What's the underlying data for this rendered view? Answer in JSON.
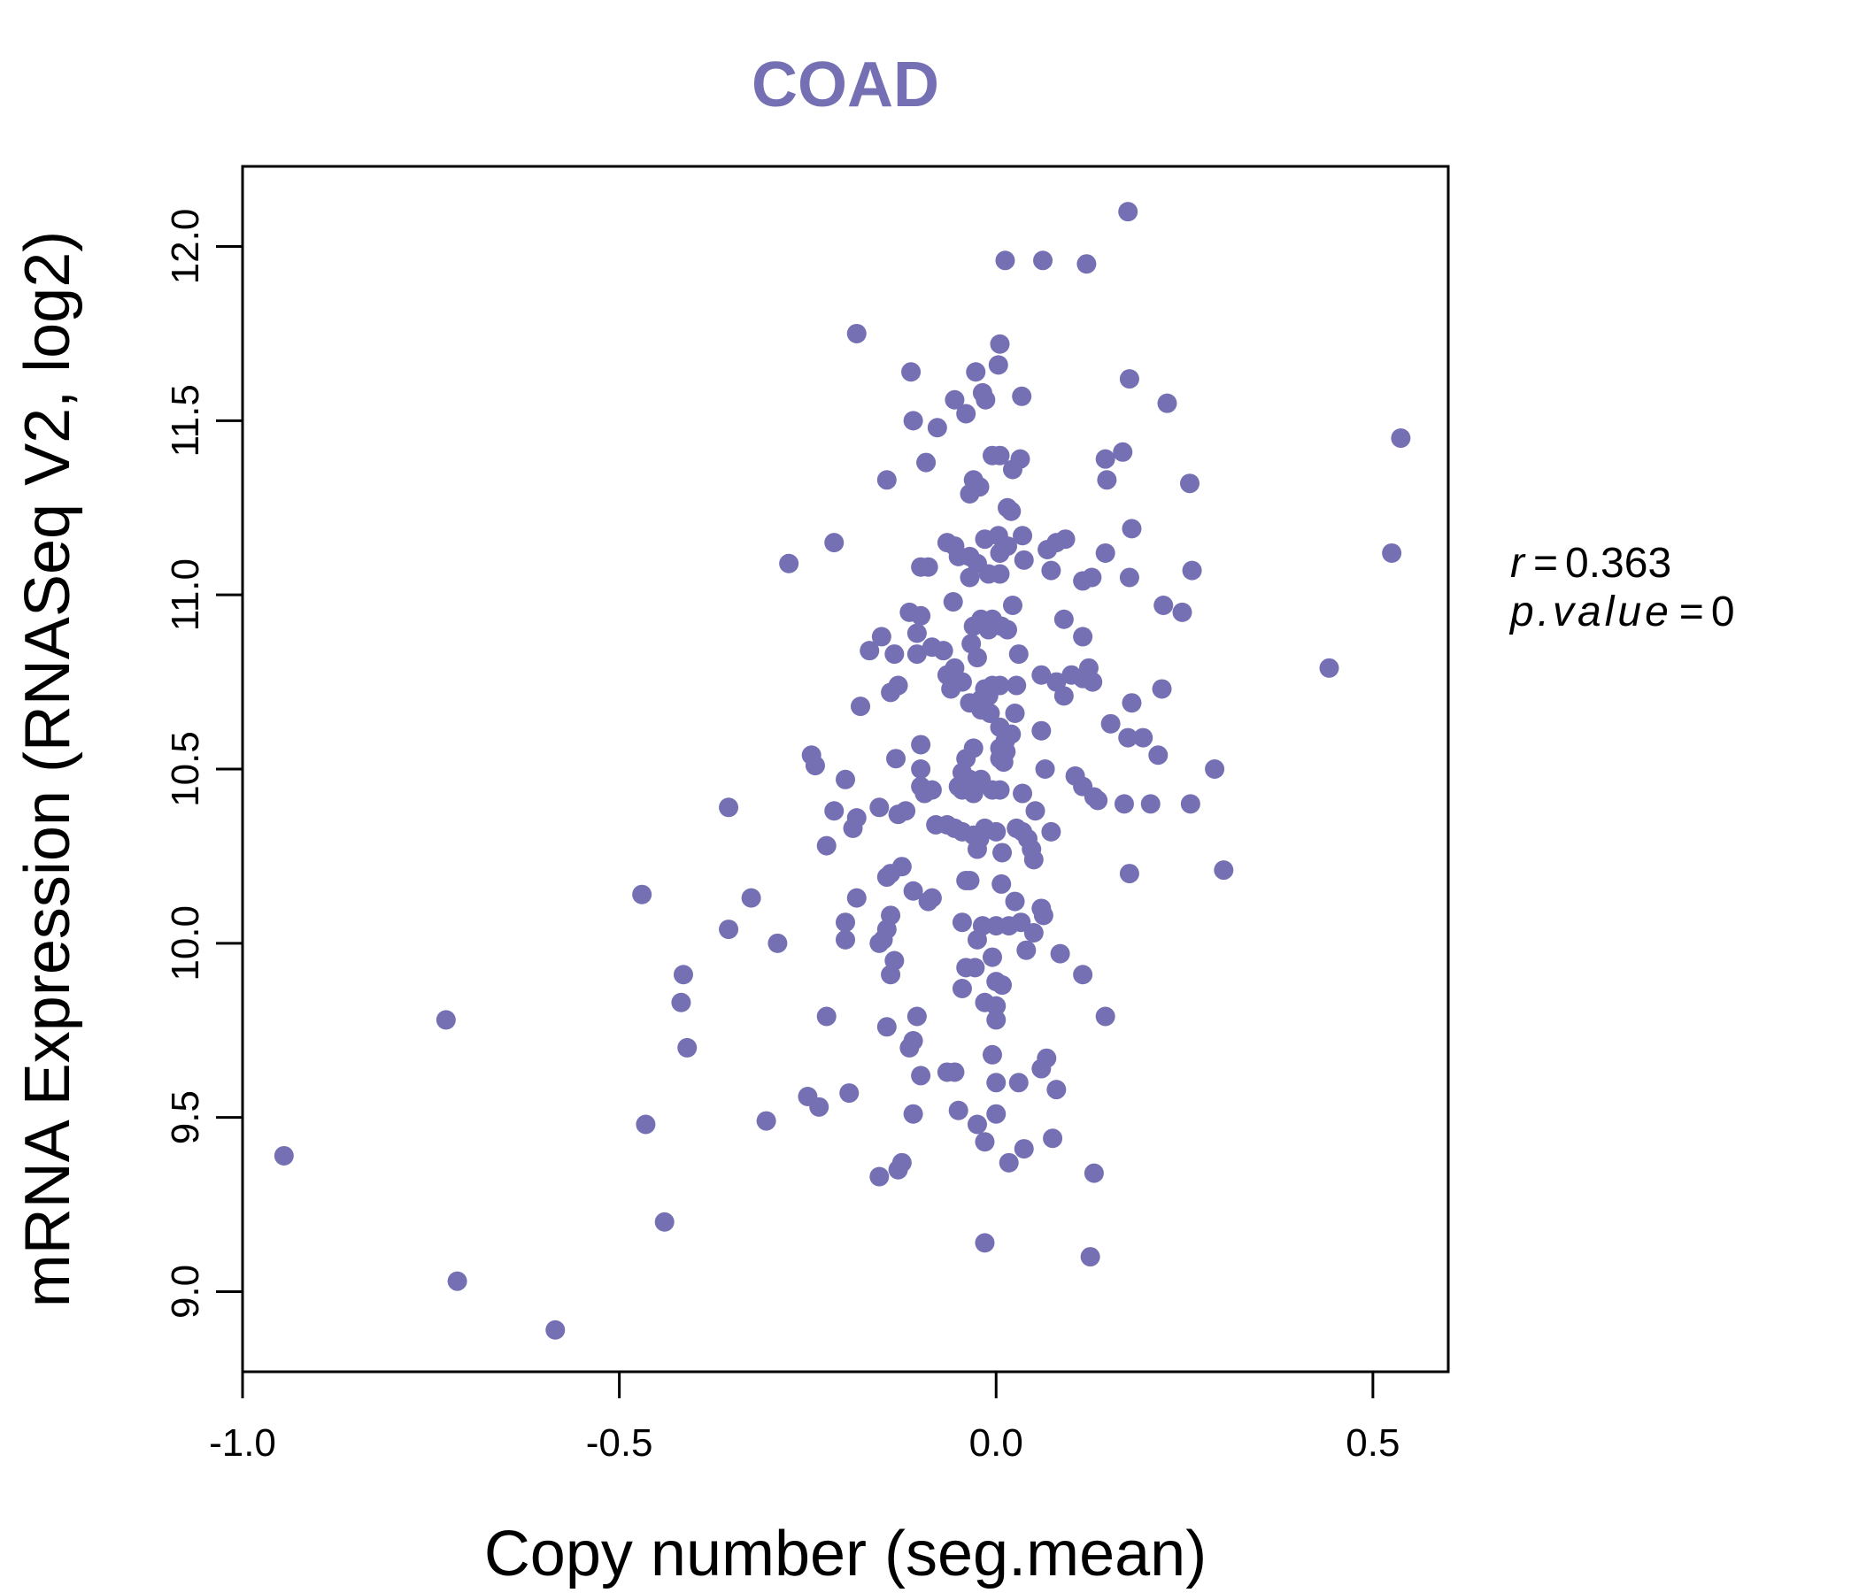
{
  "chart_data": {
    "type": "scatter",
    "title": "COAD",
    "xlabel": "Copy number (seg.mean)",
    "ylabel": "mRNA Expression (RNASeq V2, log2)",
    "xlim": [
      -1.0,
      0.6
    ],
    "ylim": [
      8.77,
      12.23
    ],
    "xticks": [
      -1.0,
      -0.5,
      0.0,
      0.5
    ],
    "xtick_labels": [
      "-1.0",
      "-0.5",
      "0.0",
      "0.5"
    ],
    "yticks": [
      9.0,
      9.5,
      10.0,
      10.5,
      11.0,
      11.5,
      12.0
    ],
    "ytick_labels": [
      "9.0",
      "9.5",
      "10.0",
      "10.5",
      "11.0",
      "11.5",
      "12.0"
    ],
    "grid": false,
    "legend": null,
    "point_color": "#7570b3",
    "stats": {
      "r_label": "r",
      "r_value": "0.363",
      "p_label": "p.value",
      "p_value": "0"
    },
    "points": [
      [
        0.175,
        12.1
      ],
      [
        0.012,
        11.96
      ],
      [
        0.062,
        11.96
      ],
      [
        0.12,
        11.95
      ],
      [
        -0.185,
        11.75
      ],
      [
        0.005,
        11.72
      ],
      [
        0.003,
        11.66
      ],
      [
        -0.027,
        11.64
      ],
      [
        -0.113,
        11.64
      ],
      [
        0.177,
        11.62
      ],
      [
        -0.018,
        11.58
      ],
      [
        -0.014,
        11.56
      ],
      [
        -0.055,
        11.56
      ],
      [
        0.034,
        11.57
      ],
      [
        0.227,
        11.55
      ],
      [
        -0.04,
        11.52
      ],
      [
        -0.11,
        11.5
      ],
      [
        -0.078,
        11.48
      ],
      [
        0.537,
        11.45
      ],
      [
        -0.005,
        11.4
      ],
      [
        0.005,
        11.4
      ],
      [
        0.168,
        11.41
      ],
      [
        0.145,
        11.39
      ],
      [
        0.032,
        11.39
      ],
      [
        -0.093,
        11.38
      ],
      [
        0.022,
        11.36
      ],
      [
        -0.145,
        11.33
      ],
      [
        -0.03,
        11.33
      ],
      [
        0.147,
        11.33
      ],
      [
        0.257,
        11.32
      ],
      [
        -0.022,
        11.31
      ],
      [
        -0.035,
        11.29
      ],
      [
        0.015,
        11.25
      ],
      [
        0.02,
        11.24
      ],
      [
        0.18,
        11.19
      ],
      [
        -0.015,
        11.16
      ],
      [
        0.003,
        11.17
      ],
      [
        0.035,
        11.17
      ],
      [
        0.092,
        11.16
      ],
      [
        0.08,
        11.15
      ],
      [
        -0.065,
        11.15
      ],
      [
        -0.055,
        11.14
      ],
      [
        0.015,
        11.14
      ],
      [
        0.068,
        11.13
      ],
      [
        -0.215,
        11.15
      ],
      [
        0.005,
        11.12
      ],
      [
        0.145,
        11.12
      ],
      [
        0.525,
        11.12
      ],
      [
        -0.035,
        11.11
      ],
      [
        -0.05,
        11.11
      ],
      [
        0.037,
        11.1
      ],
      [
        -0.275,
        11.09
      ],
      [
        -0.025,
        11.09
      ],
      [
        -0.09,
        11.08
      ],
      [
        -0.1,
        11.08
      ],
      [
        0.26,
        11.07
      ],
      [
        0.073,
        11.07
      ],
      [
        0.005,
        11.06
      ],
      [
        -0.01,
        11.06
      ],
      [
        0.127,
        11.05
      ],
      [
        0.115,
        11.04
      ],
      [
        0.177,
        11.05
      ],
      [
        -0.035,
        11.05
      ],
      [
        0.222,
        10.97
      ],
      [
        0.022,
        10.97
      ],
      [
        -0.057,
        10.98
      ],
      [
        0.247,
        10.95
      ],
      [
        -0.115,
        10.95
      ],
      [
        -0.1,
        10.94
      ],
      [
        -0.005,
        10.93
      ],
      [
        -0.02,
        10.93
      ],
      [
        0.09,
        10.93
      ],
      [
        0.007,
        10.91
      ],
      [
        -0.03,
        10.91
      ],
      [
        -0.01,
        10.9
      ],
      [
        0.015,
        10.9
      ],
      [
        -0.105,
        10.89
      ],
      [
        0.115,
        10.88
      ],
      [
        -0.152,
        10.88
      ],
      [
        -0.085,
        10.85
      ],
      [
        -0.033,
        10.86
      ],
      [
        -0.168,
        10.84
      ],
      [
        -0.07,
        10.84
      ],
      [
        -0.105,
        10.83
      ],
      [
        -0.135,
        10.83
      ],
      [
        0.03,
        10.83
      ],
      [
        -0.025,
        10.82
      ],
      [
        0.442,
        10.79
      ],
      [
        0.123,
        10.79
      ],
      [
        -0.055,
        10.79
      ],
      [
        -0.065,
        10.77
      ],
      [
        0.1,
        10.77
      ],
      [
        0.06,
        10.77
      ],
      [
        0.115,
        10.76
      ],
      [
        0.128,
        10.75
      ],
      [
        0.08,
        10.75
      ],
      [
        -0.045,
        10.75
      ],
      [
        -0.005,
        10.74
      ],
      [
        0.005,
        10.74
      ],
      [
        0.027,
        10.74
      ],
      [
        -0.015,
        10.73
      ],
      [
        -0.13,
        10.74
      ],
      [
        -0.06,
        10.73
      ],
      [
        0.22,
        10.73
      ],
      [
        -0.14,
        10.72
      ],
      [
        0.09,
        10.71
      ],
      [
        -0.01,
        10.71
      ],
      [
        0.18,
        10.69
      ],
      [
        -0.02,
        10.7
      ],
      [
        -0.035,
        10.69
      ],
      [
        -0.18,
        10.68
      ],
      [
        0.025,
        10.66
      ],
      [
        -0.02,
        10.67
      ],
      [
        -0.008,
        10.66
      ],
      [
        0.005,
        10.62
      ],
      [
        0.152,
        10.63
      ],
      [
        0.02,
        10.6
      ],
      [
        0.06,
        10.61
      ],
      [
        0.175,
        10.59
      ],
      [
        0.195,
        10.59
      ],
      [
        0.012,
        10.58
      ],
      [
        0.005,
        10.56
      ],
      [
        -0.1,
        10.57
      ],
      [
        -0.03,
        10.56
      ],
      [
        0.013,
        10.55
      ],
      [
        0.005,
        10.53
      ],
      [
        -0.04,
        10.53
      ],
      [
        0.215,
        10.54
      ],
      [
        -0.245,
        10.54
      ],
      [
        -0.133,
        10.53
      ],
      [
        -0.24,
        10.51
      ],
      [
        0.01,
        10.52
      ],
      [
        0.29,
        10.5
      ],
      [
        -0.1,
        10.5
      ],
      [
        0.065,
        10.5
      ],
      [
        -0.045,
        10.49
      ],
      [
        -0.02,
        10.47
      ],
      [
        -0.2,
        10.47
      ],
      [
        -0.035,
        10.47
      ],
      [
        0.105,
        10.48
      ],
      [
        0.115,
        10.45
      ],
      [
        -0.1,
        10.45
      ],
      [
        -0.05,
        10.45
      ],
      [
        -0.03,
        10.45
      ],
      [
        -0.085,
        10.44
      ],
      [
        -0.005,
        10.44
      ],
      [
        0.005,
        10.44
      ],
      [
        0.035,
        10.43
      ],
      [
        0.13,
        10.42
      ],
      [
        -0.03,
        10.43
      ],
      [
        0.135,
        10.41
      ],
      [
        -0.095,
        10.43
      ],
      [
        -0.045,
        10.44
      ],
      [
        0.17,
        10.4
      ],
      [
        0.205,
        10.4
      ],
      [
        0.258,
        10.4
      ],
      [
        -0.355,
        10.39
      ],
      [
        -0.155,
        10.39
      ],
      [
        -0.215,
        10.38
      ],
      [
        -0.12,
        10.38
      ],
      [
        -0.13,
        10.37
      ],
      [
        0.052,
        10.38
      ],
      [
        -0.185,
        10.36
      ],
      [
        -0.065,
        10.34
      ],
      [
        -0.08,
        10.34
      ],
      [
        -0.055,
        10.33
      ],
      [
        -0.045,
        10.32
      ],
      [
        -0.03,
        10.31
      ],
      [
        -0.015,
        10.33
      ],
      [
        0.0,
        10.32
      ],
      [
        0.027,
        10.33
      ],
      [
        0.035,
        10.32
      ],
      [
        0.073,
        10.32
      ],
      [
        -0.19,
        10.33
      ],
      [
        0.042,
        10.3
      ],
      [
        -0.022,
        10.3
      ],
      [
        0.047,
        10.27
      ],
      [
        -0.225,
        10.28
      ],
      [
        -0.025,
        10.27
      ],
      [
        0.008,
        10.26
      ],
      [
        0.05,
        10.24
      ],
      [
        -0.125,
        10.22
      ],
      [
        0.177,
        10.2
      ],
      [
        0.302,
        10.21
      ],
      [
        -0.14,
        10.2
      ],
      [
        -0.145,
        10.19
      ],
      [
        -0.04,
        10.18
      ],
      [
        -0.035,
        10.18
      ],
      [
        0.007,
        10.17
      ],
      [
        -0.11,
        10.15
      ],
      [
        -0.47,
        10.14
      ],
      [
        -0.085,
        10.13
      ],
      [
        -0.09,
        10.12
      ],
      [
        -0.325,
        10.13
      ],
      [
        -0.185,
        10.13
      ],
      [
        0.025,
        10.12
      ],
      [
        0.06,
        10.1
      ],
      [
        0.063,
        10.08
      ],
      [
        -0.14,
        10.08
      ],
      [
        0.033,
        10.06
      ],
      [
        -0.045,
        10.06
      ],
      [
        -0.2,
        10.06
      ],
      [
        -0.018,
        10.05
      ],
      [
        0.017,
        10.05
      ],
      [
        0.0,
        10.05
      ],
      [
        -0.145,
        10.04
      ],
      [
        -0.355,
        10.04
      ],
      [
        0.05,
        10.03
      ],
      [
        -0.15,
        10.01
      ],
      [
        -0.025,
        10.01
      ],
      [
        -0.2,
        10.01
      ],
      [
        -0.29,
        10.0
      ],
      [
        -0.155,
        10.0
      ],
      [
        0.04,
        9.98
      ],
      [
        -0.005,
        9.96
      ],
      [
        0.085,
        9.97
      ],
      [
        -0.135,
        9.95
      ],
      [
        -0.04,
        9.93
      ],
      [
        -0.028,
        9.93
      ],
      [
        -0.415,
        9.91
      ],
      [
        -0.14,
        9.91
      ],
      [
        0.115,
        9.91
      ],
      [
        0.0,
        9.89
      ],
      [
        0.008,
        9.88
      ],
      [
        -0.045,
        9.87
      ],
      [
        -0.015,
        9.83
      ],
      [
        -0.418,
        9.83
      ],
      [
        0.0,
        9.82
      ],
      [
        -0.225,
        9.79
      ],
      [
        -0.105,
        9.79
      ],
      [
        0.0,
        9.78
      ],
      [
        0.145,
        9.79
      ],
      [
        -0.73,
        9.78
      ],
      [
        -0.145,
        9.76
      ],
      [
        -0.11,
        9.72
      ],
      [
        -0.115,
        9.7
      ],
      [
        -0.41,
        9.7
      ],
      [
        -0.005,
        9.68
      ],
      [
        0.067,
        9.67
      ],
      [
        0.06,
        9.64
      ],
      [
        -0.065,
        9.63
      ],
      [
        -0.1,
        9.62
      ],
      [
        -0.055,
        9.63
      ],
      [
        0.0,
        9.6
      ],
      [
        0.03,
        9.6
      ],
      [
        0.08,
        9.58
      ],
      [
        -0.25,
        9.56
      ],
      [
        -0.195,
        9.57
      ],
      [
        -0.05,
        9.52
      ],
      [
        -0.235,
        9.53
      ],
      [
        -0.11,
        9.51
      ],
      [
        0.0,
        9.51
      ],
      [
        -0.465,
        9.48
      ],
      [
        -0.305,
        9.49
      ],
      [
        -0.025,
        9.48
      ],
      [
        0.075,
        9.44
      ],
      [
        -0.015,
        9.43
      ],
      [
        0.037,
        9.41
      ],
      [
        -0.945,
        9.39
      ],
      [
        0.017,
        9.37
      ],
      [
        -0.125,
        9.37
      ],
      [
        -0.13,
        9.35
      ],
      [
        0.13,
        9.34
      ],
      [
        -0.155,
        9.33
      ],
      [
        -0.44,
        9.2
      ],
      [
        -0.015,
        9.14
      ],
      [
        0.125,
        9.1
      ],
      [
        -0.715,
        9.03
      ],
      [
        -0.585,
        8.89
      ]
    ]
  }
}
